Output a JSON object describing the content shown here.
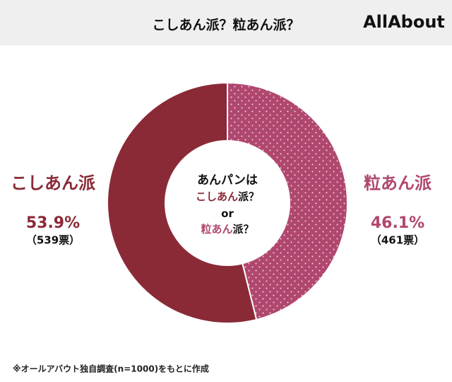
{
  "chart_data": {
    "type": "donut",
    "title": "こしあん派？粒あん派？",
    "logo": "AllAbout",
    "categories": [
      "こしあん派",
      "粒あん派"
    ],
    "values": [
      53.9,
      46.1
    ],
    "value_labels": [
      "53.9%",
      "46.1%"
    ],
    "vote_labels": [
      "（539票）",
      "（461票）"
    ],
    "colors": [
      "#8a2a37",
      "#b0476f"
    ],
    "center_lines": [
      [
        "あんパンは"
      ],
      [
        "こしあん",
        "派？"
      ],
      [
        "or"
      ],
      [
        "粒あん",
        "派？"
      ]
    ],
    "footnote": "※オールアバウト独自調査(n=1000)をもとに作成"
  }
}
